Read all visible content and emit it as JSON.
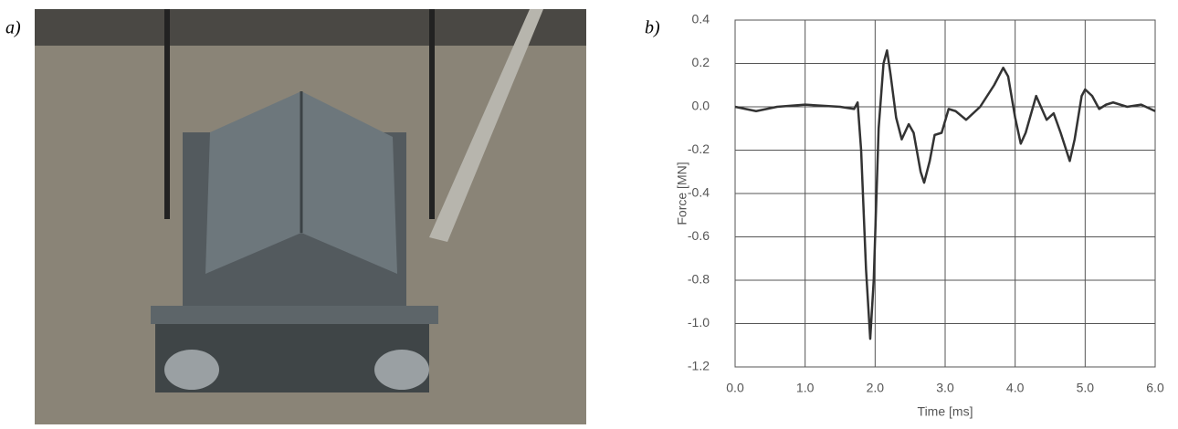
{
  "panel_labels": [
    "a)",
    "b)"
  ],
  "chart_data": {
    "type": "line",
    "xlabel": "Time [ms]",
    "ylabel": "Force [MN]",
    "x": [
      0,
      0.3,
      0.6,
      1.0,
      1.5,
      1.7,
      1.75,
      1.8,
      1.87,
      1.93,
      1.98,
      2.05,
      2.12,
      2.17,
      2.22,
      2.3,
      2.38,
      2.48,
      2.55,
      2.65,
      2.7,
      2.78,
      2.85,
      2.95,
      3.05,
      3.15,
      3.3,
      3.5,
      3.7,
      3.83,
      3.9,
      4.0,
      4.08,
      4.15,
      4.3,
      4.45,
      4.55,
      4.65,
      4.78,
      4.85,
      4.95,
      5.0,
      5.1,
      5.2,
      5.3,
      5.4,
      5.5,
      5.6,
      5.8,
      6.0
    ],
    "series": [
      {
        "color": "#333333",
        "values": [
          0.0,
          -0.02,
          0.0,
          0.01,
          0.0,
          -0.01,
          0.02,
          -0.2,
          -0.75,
          -1.07,
          -0.8,
          -0.1,
          0.2,
          0.26,
          0.15,
          -0.05,
          -0.15,
          -0.08,
          -0.12,
          -0.3,
          -0.35,
          -0.25,
          -0.13,
          -0.12,
          -0.01,
          -0.02,
          -0.06,
          0.0,
          0.1,
          0.18,
          0.14,
          -0.05,
          -0.17,
          -0.12,
          0.05,
          -0.06,
          -0.03,
          -0.12,
          -0.25,
          -0.15,
          0.05,
          0.08,
          0.05,
          -0.01,
          0.01,
          0.02,
          0.01,
          0.0,
          0.01,
          -0.02
        ]
      }
    ],
    "xlim": [
      0,
      6
    ],
    "ylim": [
      -1.2,
      0.4
    ],
    "xticks": [
      {
        "value": 0,
        "label": "0.0"
      },
      {
        "value": 1,
        "label": "1.0"
      },
      {
        "value": 2,
        "label": "2.0"
      },
      {
        "value": 3,
        "label": "3.0"
      },
      {
        "value": 4,
        "label": "4.0"
      },
      {
        "value": 5,
        "label": "5.0"
      },
      {
        "value": 6,
        "label": "6.0"
      }
    ],
    "yticks": [
      0.4,
      0.2,
      {
        "value": 0,
        "label": "0.0"
      },
      -0.2,
      -0.4,
      -0.6,
      -0.8,
      {
        "value": -1,
        "label": "-1.0"
      },
      -1.2
    ],
    "grid": true
  }
}
